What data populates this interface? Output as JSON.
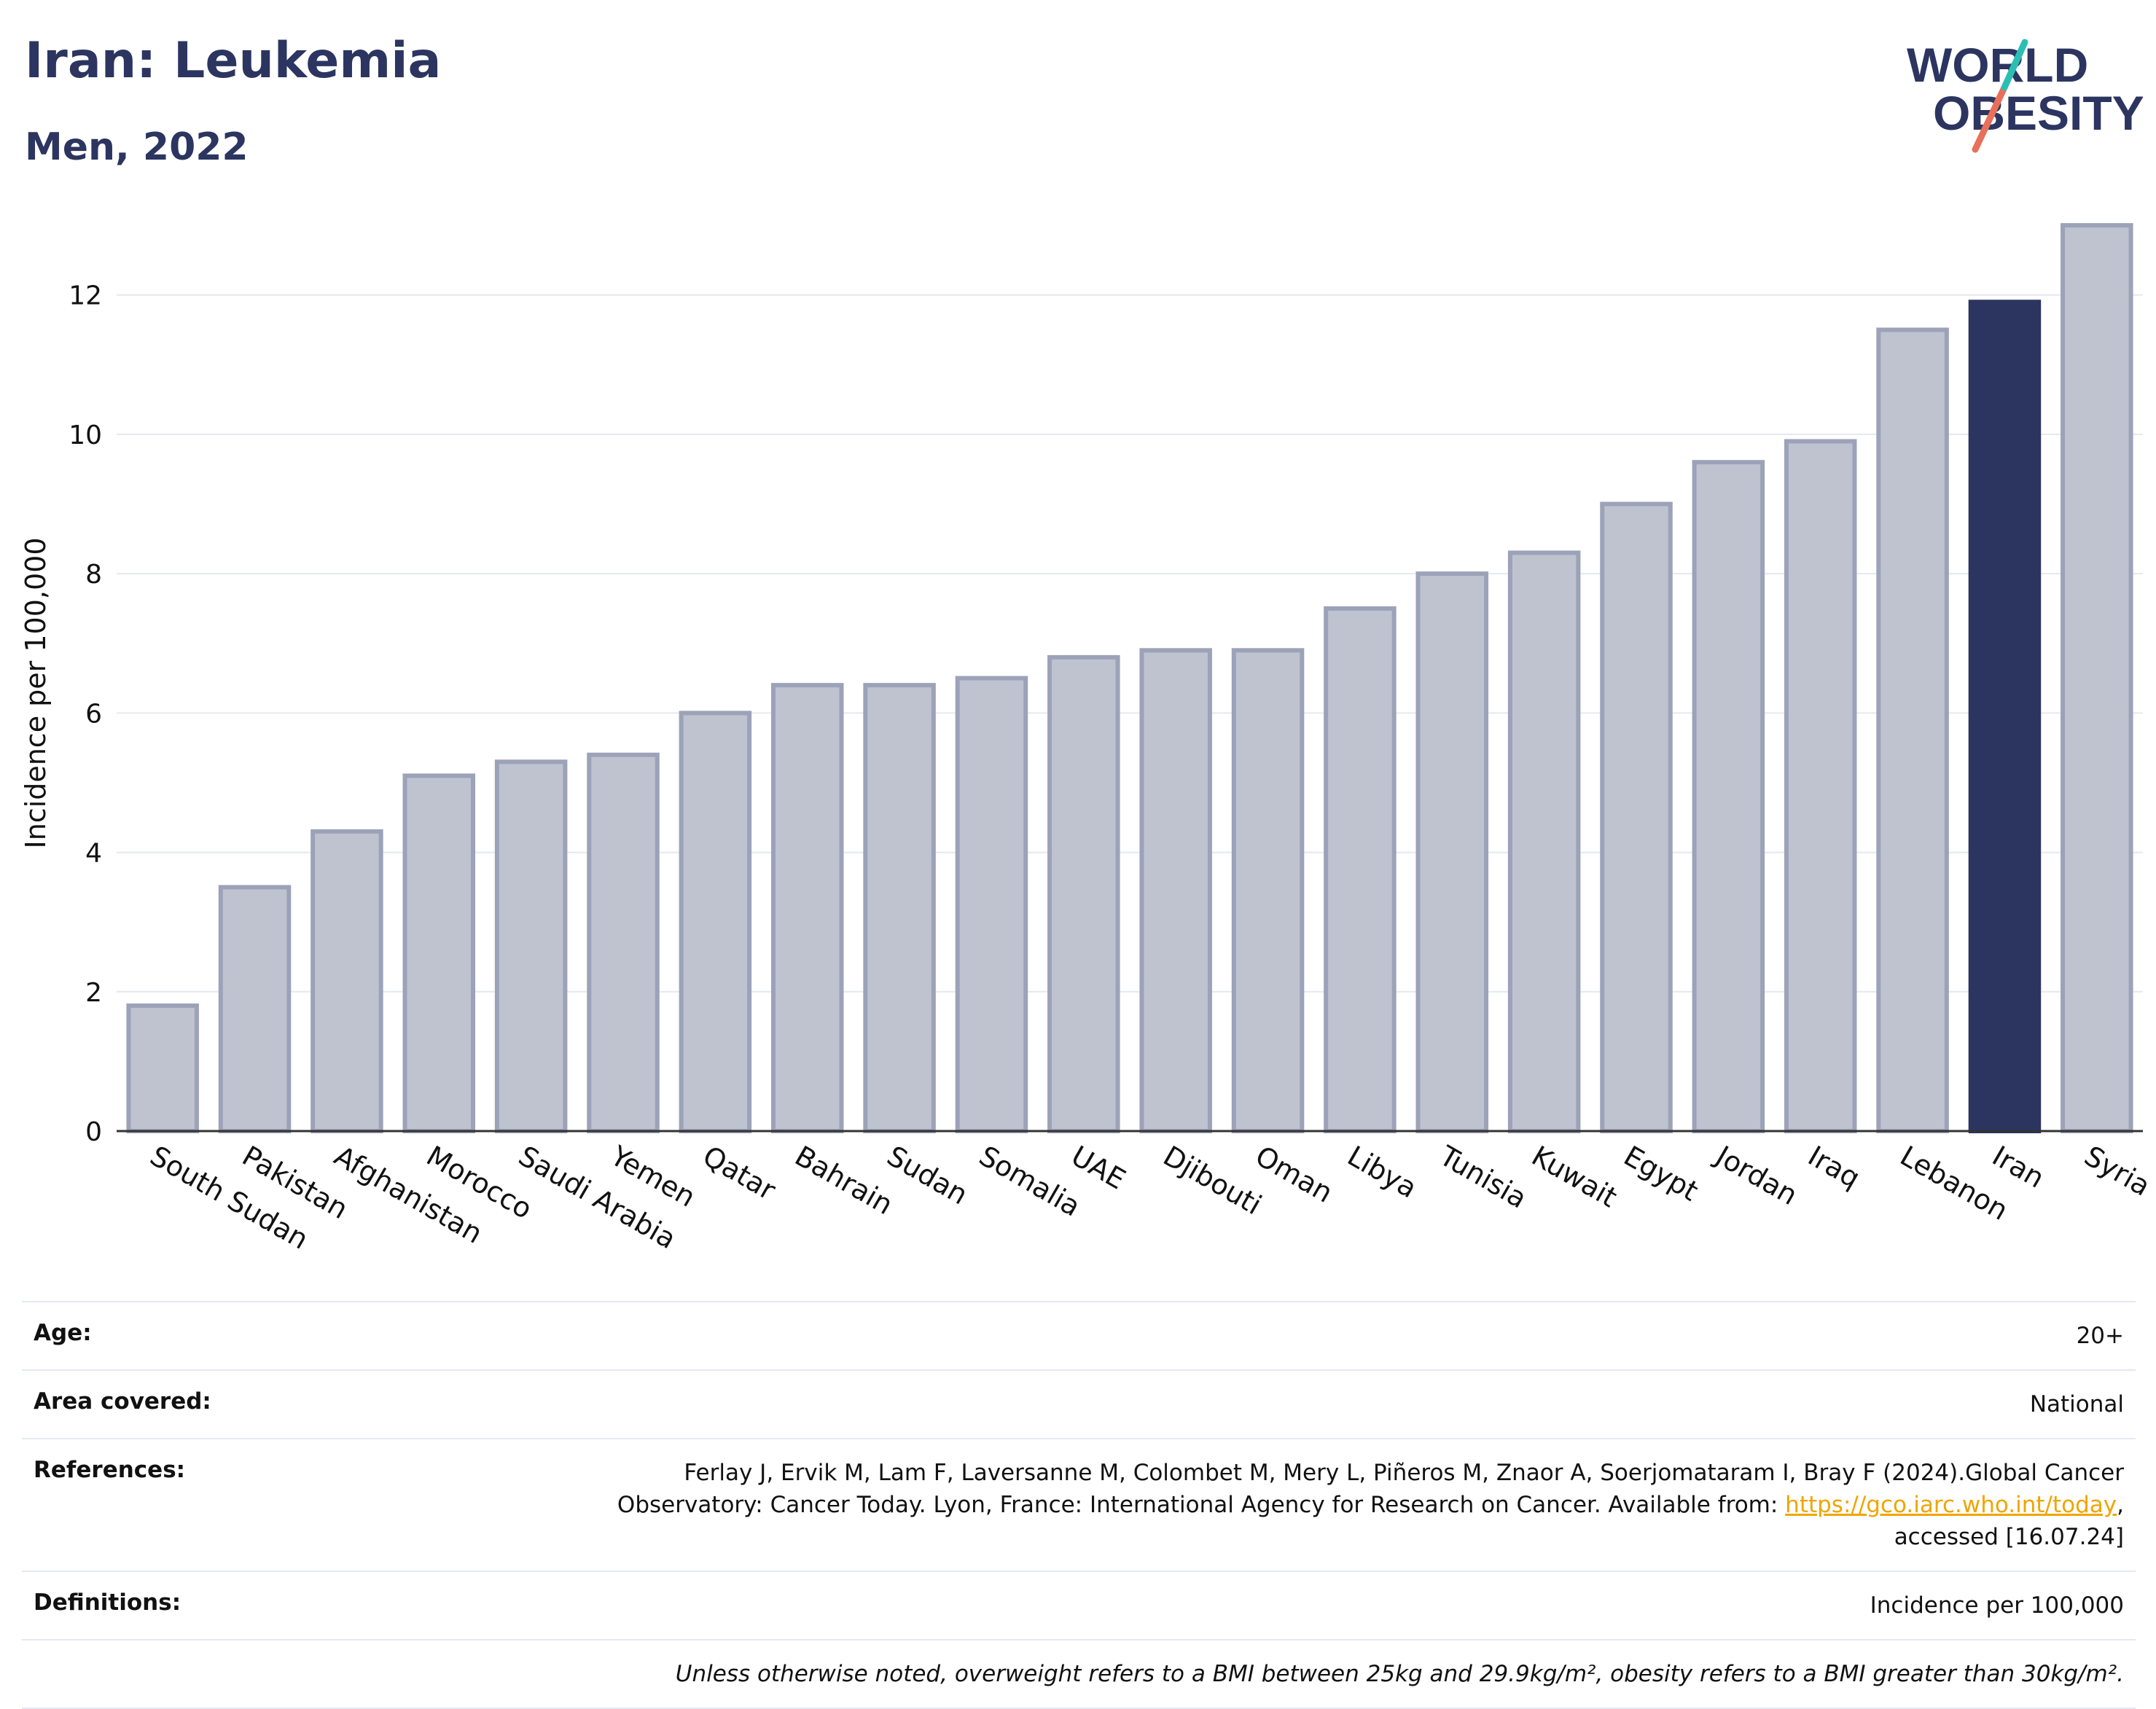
{
  "header": {
    "title": "Iran: Leukemia",
    "subtitle": "Men, 2022"
  },
  "logo": {
    "line1": "WORLD",
    "line2": "OBESITY"
  },
  "colors": {
    "highlight": "#2c3560",
    "bar_fill": "#bfc3d0",
    "bar_stroke": "#9ca2b8",
    "grid": "#e6e8f0"
  },
  "chart_data": {
    "type": "bar",
    "title": "",
    "xlabel": "",
    "ylabel": "Incidence per 100,000",
    "ylim": [
      0,
      13.2
    ],
    "yticks": [
      0,
      2,
      4,
      6,
      8,
      10,
      12
    ],
    "highlight": "Iran",
    "categories": [
      "South Sudan",
      "Pakistan",
      "Afghanistan",
      "Morocco",
      "Saudi Arabia",
      "Yemen",
      "Qatar",
      "Bahrain",
      "Sudan",
      "Somalia",
      "UAE",
      "Djibouti",
      "Oman",
      "Libya",
      "Tunisia",
      "Kuwait",
      "Egypt",
      "Jordan",
      "Iraq",
      "Lebanon",
      "Iran",
      "Syria"
    ],
    "values": [
      1.8,
      3.5,
      4.3,
      5.1,
      5.3,
      5.4,
      6.0,
      6.4,
      6.4,
      6.5,
      6.8,
      6.9,
      6.9,
      7.5,
      8.0,
      8.3,
      9.0,
      9.6,
      9.9,
      11.5,
      11.9,
      13.0
    ],
    "grid": true
  },
  "info": {
    "age_label": "Age:",
    "age_value": "20+",
    "area_label": "Area covered:",
    "area_value": "National",
    "references_label": "References:",
    "references_text_1": "Ferlay J, Ervik M, Lam F, Laversanne M, Colombet M, Mery L, Piñeros M, Znaor A, Soerjomataram I, Bray F (2024).Global Cancer",
    "references_text_2": "Observatory: Cancer Today. Lyon, France: International Agency for Research on Cancer. Available from:",
    "references_link": "https://gco.iarc.who.int/today",
    "references_text_3": "accessed [16.07.24]",
    "definitions_label": "Definitions:",
    "definitions_value": "Incidence per 100,000",
    "note": "Unless otherwise noted, overweight refers to a BMI between 25kg and 29.9kg/m², obesity refers to a BMI greater than 30kg/m²."
  }
}
